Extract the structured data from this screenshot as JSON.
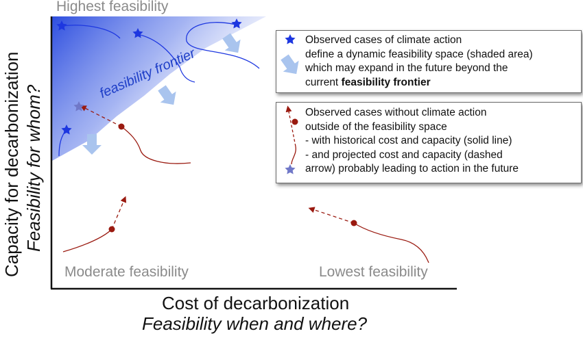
{
  "corners": {
    "top_left": "Highest feasibility",
    "bottom_left": "Moderate feasibility",
    "bottom_right": "Lowest feasibility"
  },
  "axes": {
    "x_title": "Cost of decarbonization",
    "x_subtitle": "Feasibility when and where?",
    "y_title": "Capacity for decarbonization",
    "y_subtitle": "Feasibility for whom?"
  },
  "frontier_label": "feasibility frontier",
  "legend": {
    "box1": {
      "line1": "Observed cases of climate action",
      "line2": "define a dynamic feasibility space (shaded area)",
      "line3": "which may expand in the future beyond the",
      "line4_plain": "current ",
      "line4_bold": "feasibility frontier"
    },
    "box2": {
      "line1": "Observed cases without climate action",
      "line2": "outside of the feasibility space",
      "line3": "- with historical cost and capacity (solid line)",
      "line4": "- and projected cost and capacity (dashed",
      "line5": "arrow) probably leading to action in the future"
    }
  },
  "colors": {
    "observed_action": "#1d37e0",
    "no_action": "#9a1a10",
    "projected_star": "#7078c8",
    "shading": "#2244dd",
    "expansion_arrow": "#a9c4ee",
    "corner_text": "#8a8a8a"
  },
  "icons": {
    "observed_action": "blue-star-icon",
    "projected_action": "gray-blue-star-icon",
    "no_action_marker": "dark-red-dot-icon",
    "expansion": "light-blue-arrow-icon"
  }
}
